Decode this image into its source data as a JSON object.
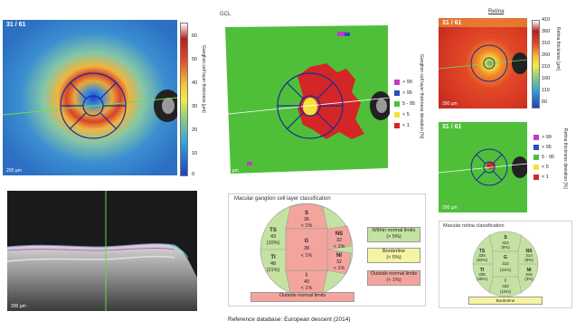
{
  "gcl_header": "GCL",
  "retina_header": "Retina",
  "frame_label": "31 / 61",
  "scale_label": "200 µm",
  "thickness_map": {
    "colorbar_label": "Ganglion cell layer thickness [µm]",
    "ticks": [
      "60",
      "50",
      "40",
      "30",
      "20",
      "10",
      "0"
    ]
  },
  "deviation_map": {
    "legend_label": "Ganglion cell layer thickness deviation [%]",
    "legend": [
      {
        "label": "> 99",
        "color": "#c23bc2"
      },
      {
        "label": "> 95",
        "color": "#2a4db8"
      },
      {
        "label": "5 - 95",
        "color": "#4fbf3a"
      },
      {
        "label": "< 5",
        "color": "#f2e23a"
      },
      {
        "label": "< 1",
        "color": "#d42626"
      }
    ]
  },
  "retina_thickness": {
    "colorbar_label": "Retina thickness [µm]",
    "ticks": [
      "410",
      "360",
      "310",
      "260",
      "210",
      "160",
      "110",
      "60"
    ]
  },
  "retina_deviation": {
    "legend_label": "Retina thickness deviation [%]",
    "legend": [
      {
        "label": "> 99",
        "color": "#c23bc2"
      },
      {
        "label": "> 95",
        "color": "#2a4db8"
      },
      {
        "label": "5 - 95",
        "color": "#4fbf3a"
      },
      {
        "label": "< 5",
        "color": "#f2e23a"
      },
      {
        "label": "< 1",
        "color": "#d42626"
      }
    ]
  },
  "gcl_classification": {
    "title": "Macular ganglion cell layer classification",
    "sectors": {
      "S": {
        "name": "S",
        "value": "36",
        "pct": "< 1%"
      },
      "TS": {
        "name": "TS",
        "value": "43",
        "pct": "(10%)"
      },
      "NS": {
        "name": "NS",
        "value": "32",
        "pct": "< 1%"
      },
      "G": {
        "name": "G",
        "value": "38",
        "pct": "< 1%"
      },
      "TI": {
        "name": "TI",
        "value": "48",
        "pct": "(21%)"
      },
      "NI": {
        "name": "NI",
        "value": "32",
        "pct": "< 1%"
      },
      "I": {
        "name": "I",
        "value": "40",
        "pct": "< 1%"
      }
    },
    "result": "Outside normal limits",
    "key": {
      "within": "Within normal limits",
      "within_pct": "(> 5%)",
      "borderline": "Borderline",
      "borderline_pct": "(< 5%)",
      "outside": "Outside normal limits",
      "outside_pct": "(< 1%)"
    }
  },
  "retina_classification": {
    "title": "Macular retina classification",
    "sectors": {
      "S": {
        "name": "S",
        "value": "324",
        "pct": "(8%)"
      },
      "TS": {
        "name": "TS",
        "value": "325",
        "pct": "(62%)"
      },
      "NS": {
        "name": "NS",
        "value": "314",
        "pct": "(9%)"
      },
      "G": {
        "name": "G",
        "value": "315",
        "pct": "(31%)"
      },
      "TI": {
        "name": "TI",
        "value": "335",
        "pct": "(48%)"
      },
      "NI": {
        "name": "NI",
        "value": "316",
        "pct": "(3%)"
      },
      "I": {
        "name": "I",
        "value": "332",
        "pct": "(10%)"
      }
    },
    "result": "Borderline"
  },
  "footer": "Reference database:  European descent (2014)"
}
